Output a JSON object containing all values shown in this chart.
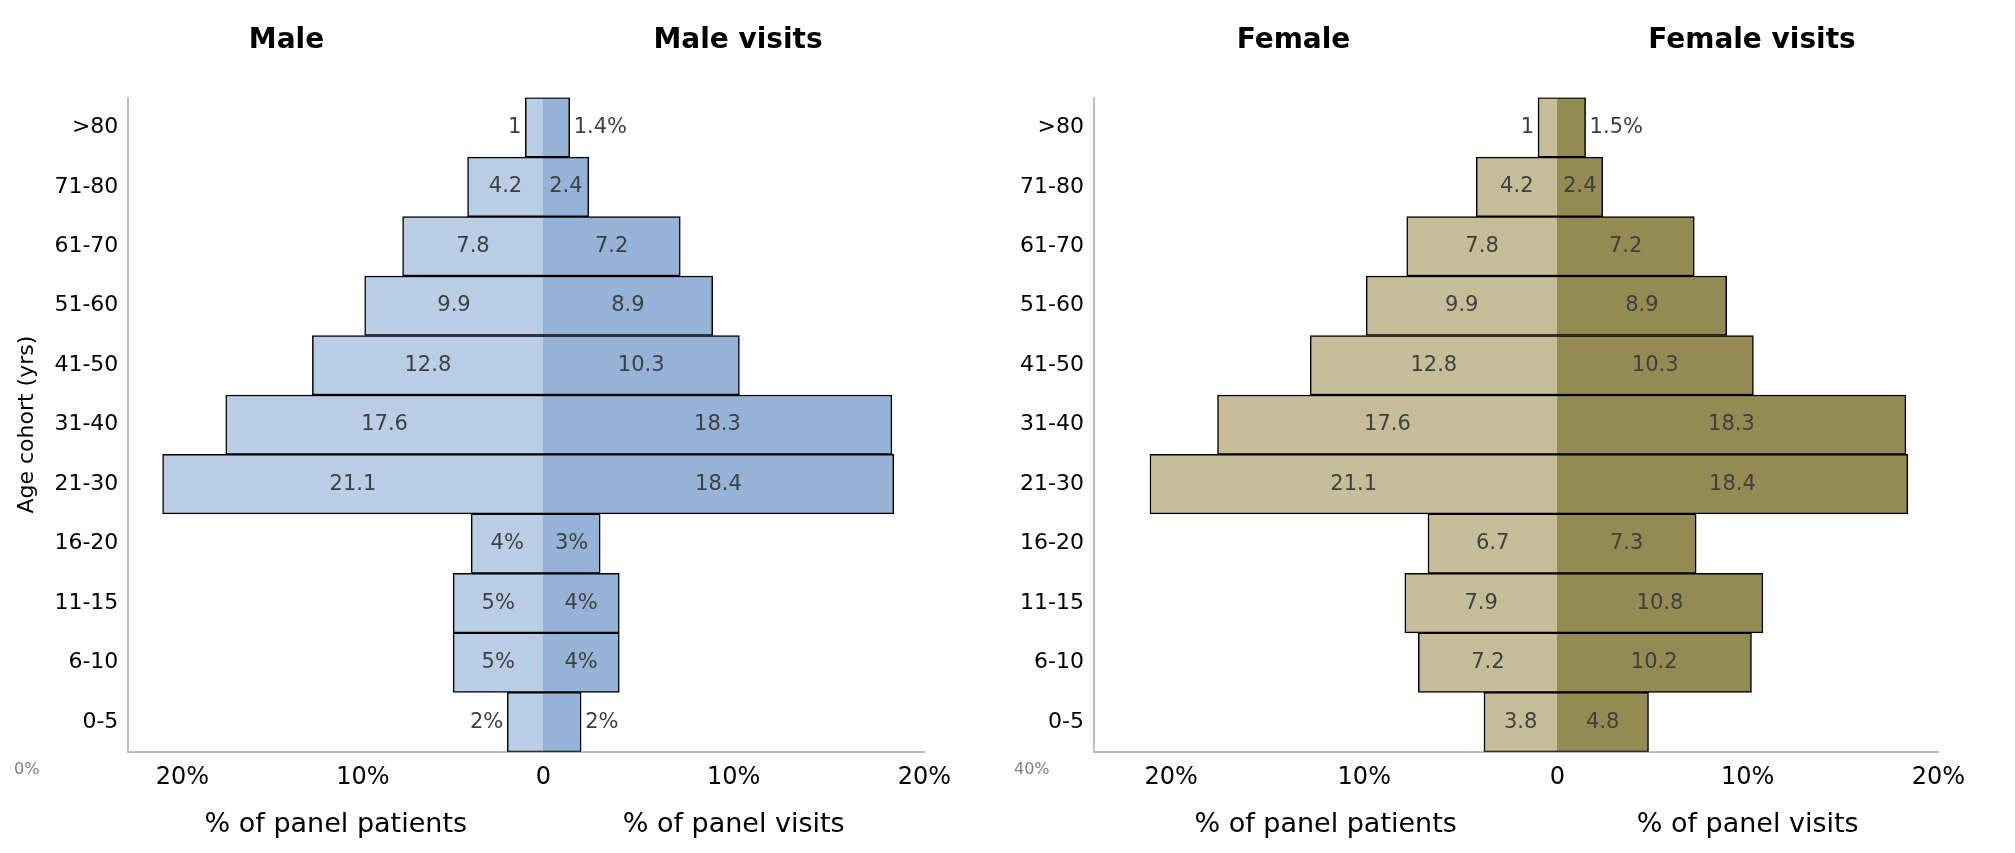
{
  "chart_data": [
    {
      "type": "bar",
      "orientation": "horizontal",
      "title": "Male",
      "xlabel": "% of panel patients",
      "ylabel": "Age cohort (yrs)",
      "categories": [
        ">80",
        "71-80",
        "61-70",
        "51-60",
        "41-50",
        "31-40",
        "21-30",
        "16-20",
        "11-15",
        "6-10",
        "0-5"
      ],
      "series": [
        {
          "color": "#b9cde5",
          "values": [
            1,
            4.2,
            7.8,
            9.9,
            12.8,
            17.6,
            21.1,
            4,
            5,
            5,
            2
          ],
          "value_labels": [
            "1",
            "4.2",
            "7.8",
            "9.9",
            "12.8",
            "17.6",
            "21.1",
            "4%",
            "5%",
            "5%",
            "2%"
          ]
        }
      ],
      "xlim": [
        23,
        0
      ],
      "xticks": [
        {
          "value": 20,
          "label": "20%"
        },
        {
          "value": 10,
          "label": "10%"
        },
        {
          "value": 0,
          "label": "0"
        }
      ],
      "grid": false,
      "legend": false,
      "annotations": [
        "0%"
      ]
    },
    {
      "type": "bar",
      "orientation": "horizontal",
      "title": "Male visits",
      "xlabel": "% of panel visits",
      "categories": [
        null,
        null,
        null,
        null,
        null,
        null,
        null,
        null,
        null,
        null,
        null
      ],
      "series": [
        {
          "color": "#95b3d7",
          "values": [
            1.4,
            2.4,
            7.2,
            8.9,
            10.3,
            18.3,
            18.4,
            3,
            4,
            4,
            2
          ],
          "value_labels": [
            "1.4%",
            "2.4",
            "7.2",
            "8.9",
            "10.3",
            "18.3",
            "18.4",
            "3%",
            "4%",
            "4%",
            "2%"
          ]
        }
      ],
      "xlim": [
        0,
        20
      ],
      "xticks": [
        {
          "value": 10,
          "label": "10%"
        },
        {
          "value": 20,
          "label": "20%"
        }
      ],
      "grid": false,
      "legend": false,
      "tick_labels": "x"
    },
    {
      "type": "bar",
      "orientation": "horizontal",
      "title": "Female",
      "xlabel": "% of panel patients",
      "categories": [
        ">80",
        "71-80",
        "61-70",
        "51-60",
        "41-50",
        "31-40",
        "21-30",
        "16-20",
        "11-15",
        "6-10",
        "0-5"
      ],
      "series": [
        {
          "color": "#c4bd97",
          "values": [
            1,
            4.2,
            7.8,
            9.9,
            12.8,
            17.6,
            21.1,
            6.7,
            7.9,
            7.2,
            3.8
          ],
          "value_labels": [
            "1",
            "4.2",
            "7.8",
            "9.9",
            "12.8",
            "17.6",
            "21.1",
            "6.7",
            "7.9",
            "7.2",
            "3.8"
          ]
        }
      ],
      "xlim": [
        24,
        0
      ],
      "xticks": [
        {
          "value": 20,
          "label": "20%"
        },
        {
          "value": 10,
          "label": "10%"
        },
        {
          "value": 0,
          "label": "0"
        }
      ],
      "grid": false,
      "legend": false,
      "annotations": [
        "40%"
      ]
    },
    {
      "type": "bar",
      "orientation": "horizontal",
      "title": "Female visits",
      "xlabel": "% of panel visits",
      "categories": [
        null,
        null,
        null,
        null,
        null,
        null,
        null,
        null,
        null,
        null,
        null
      ],
      "series": [
        {
          "color": "#948a54",
          "values": [
            1.5,
            2.4,
            7.2,
            8.9,
            10.3,
            18.3,
            18.4,
            7.3,
            10.8,
            10.2,
            4.8
          ],
          "value_labels": [
            "1.5%",
            "2.4",
            "7.2",
            "8.9",
            "10.3",
            "18.3",
            "18.4",
            "7.3",
            "10.8",
            "10.2",
            "4.8"
          ]
        }
      ],
      "xlim": [
        0,
        20
      ],
      "xticks": [
        {
          "value": 10,
          "label": "10%"
        },
        {
          "value": 20,
          "label": "20%"
        }
      ],
      "grid": false,
      "legend": false,
      "tick_labels": "x"
    }
  ]
}
